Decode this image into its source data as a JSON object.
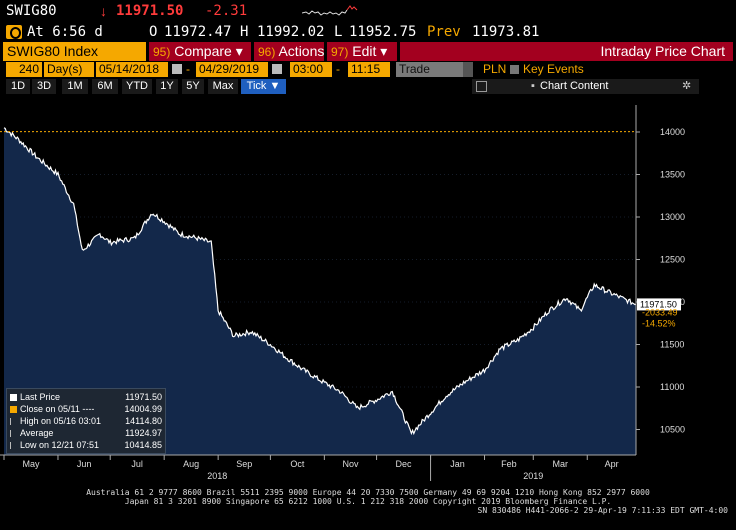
{
  "ticker": {
    "symbol": "SWIG80",
    "arrow": "↓",
    "last": "11971.50",
    "change": "-2.31"
  },
  "quote": {
    "time": "At 6:56 d",
    "open_label": "O",
    "open": "11972.47",
    "high_label": "H",
    "high": "11992.02",
    "low_label": "L",
    "low": "11952.75",
    "prev_label": "Prev",
    "prev": "11973.81"
  },
  "menu": {
    "security": "SWIG80 Index",
    "compare_num": "95)",
    "compare": "Compare",
    "actions_num": "96)",
    "actions": "Actions",
    "edit_num": "97)",
    "edit": "Edit",
    "title": "Intraday Price Chart"
  },
  "controls": {
    "period_value": "240",
    "period_unit": "Day(s)",
    "start_date": "05/14/2018",
    "end_date": "04/29/2019",
    "start_time": "03:00",
    "end_time": "11:15",
    "market": "Trade",
    "currency": "PLN",
    "key_events": "Key Events"
  },
  "ranges": [
    "1D",
    "3D",
    "1M",
    "6M",
    "YTD",
    "1Y",
    "5Y",
    "Max",
    "Tick ▼"
  ],
  "chart_content_label": "Chart Content",
  "colors": {
    "accent": "#f5a800",
    "menu": "#a3001f",
    "down": "#ff3b3b",
    "area": "#13284a",
    "line": "#ffffff"
  },
  "chart_data": {
    "type": "area",
    "y_ticks": [
      10500,
      11000,
      11500,
      12000,
      12500,
      13000,
      13500,
      14000
    ],
    "ylim": [
      10200,
      14200
    ],
    "x_month_labels": [
      "May",
      "Jun",
      "Jul",
      "Aug",
      "Sep",
      "Oct",
      "Nov",
      "Dec",
      "Jan",
      "Feb",
      "Mar",
      "Apr"
    ],
    "x_year_labels": [
      "2018",
      "2019"
    ],
    "reference_line": 14004.99,
    "last_price_label": "11971.50",
    "change_label": "-2033.49",
    "change_pct_label": "-14.52%",
    "x": [
      "2018-05-01",
      "2018-05-10",
      "2018-05-20",
      "2018-06-01",
      "2018-06-10",
      "2018-06-15",
      "2018-06-25",
      "2018-07-01",
      "2018-07-15",
      "2018-07-25",
      "2018-08-01",
      "2018-08-10",
      "2018-08-20",
      "2018-08-28",
      "2018-09-01",
      "2018-09-10",
      "2018-09-20",
      "2018-10-01",
      "2018-10-10",
      "2018-10-20",
      "2018-11-01",
      "2018-11-10",
      "2018-11-20",
      "2018-12-01",
      "2018-12-10",
      "2018-12-21",
      "2019-01-01",
      "2019-01-10",
      "2019-01-20",
      "2019-02-01",
      "2019-02-10",
      "2019-02-20",
      "2019-03-01",
      "2019-03-10",
      "2019-03-20",
      "2019-03-28",
      "2019-04-05",
      "2019-04-15",
      "2019-04-29"
    ],
    "values": [
      14050,
      13900,
      13700,
      13500,
      13150,
      12600,
      12800,
      12700,
      12750,
      13050,
      12950,
      12800,
      12750,
      12700,
      11900,
      11600,
      11650,
      11500,
      11350,
      11200,
      11050,
      10950,
      10750,
      10850,
      10950,
      10450,
      10700,
      10900,
      11050,
      11200,
      11450,
      11550,
      11700,
      11900,
      12050,
      11900,
      12200,
      12100,
      11971.5
    ]
  },
  "legend": [
    {
      "label": "Last Price",
      "value": "11971.50",
      "color": "#ffffff"
    },
    {
      "label": "Close on 05/11 ---- ",
      "value": "14004.99",
      "color": "#f5a800"
    },
    {
      "label": "High on 05/16 03:01",
      "value": "14114.80",
      "color": "#bbbbbb"
    },
    {
      "label": "Average",
      "value": "11924.97",
      "color": "#bbbbbb"
    },
    {
      "label": "Low on 12/21 07:51",
      "value": "10414.85",
      "color": "#bbbbbb"
    }
  ],
  "footer": {
    "line1": "Australia 61 2 9777 8600 Brazil 5511 2395 9000 Europe 44 20 7330 7500 Germany 49 69 9204 1210 Hong Kong 852 2977 6000",
    "line2": "Japan 81 3 3201 8900       Singapore 65 6212 1000       U.S. 1 212 318 2000       Copyright 2019 Bloomberg Finance L.P.",
    "line3": "SN 830486 H441-2066-2 29-Apr-19  7:11:33 EDT  GMT-4:00"
  }
}
